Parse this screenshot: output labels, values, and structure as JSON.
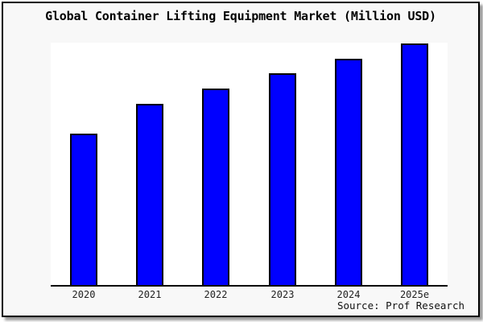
{
  "chart_data": {
    "type": "bar",
    "title": "Global Container Lifting Equipment Market (Million USD)",
    "categories": [
      "2020",
      "2021",
      "2022",
      "2023",
      "2024",
      "2025e"
    ],
    "values": [
      188,
      225,
      244,
      263,
      281,
      300
    ],
    "value_note": "chart displays no numeric y-axis or data labels; values are relative bar heights read from pixels",
    "xlabel": "",
    "ylabel": "",
    "ylim": [
      0,
      301
    ],
    "grid": false,
    "legend": false,
    "bar_color": "#0000ff",
    "bar_border_color": "#000000",
    "source": "Source: Prof Research"
  },
  "colors": {
    "page_background": "#f8f8f8",
    "plot_background": "#ffffff",
    "frame_border": "#000000",
    "title_text": "#000000",
    "tick_text": "#222222"
  }
}
